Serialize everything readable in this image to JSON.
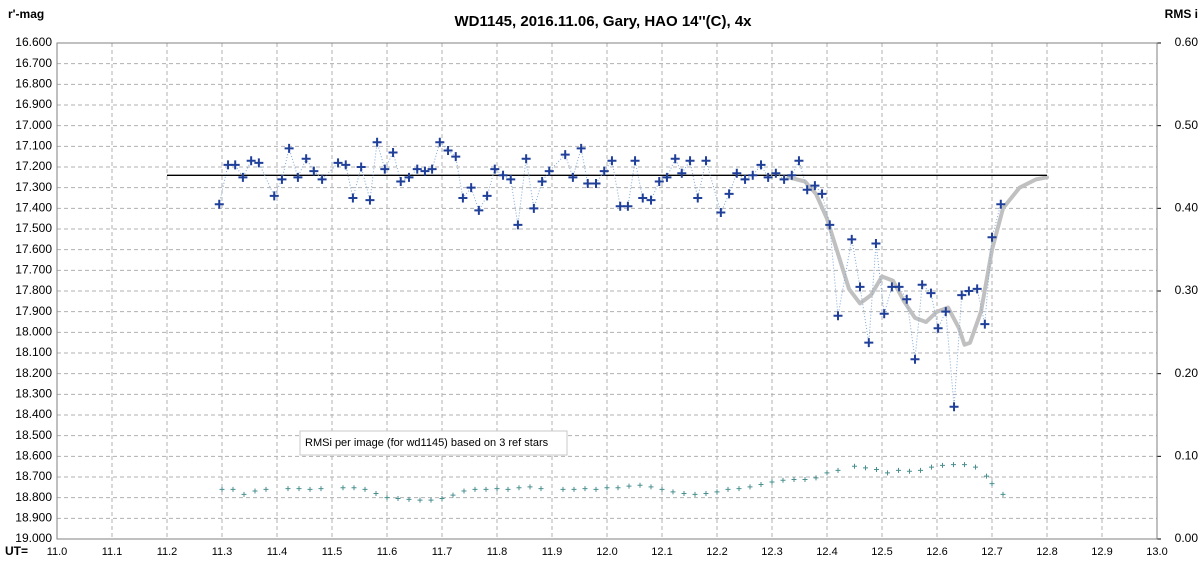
{
  "chart_data": {
    "type": "line",
    "title": "WD1145, 2016.11.06,  Gary, HAO 14''(C), 4x",
    "y_label": "r'-mag",
    "y2_label": "RMS i",
    "x_label": "UT=",
    "annotation": "RMSi per image (for wd1145) based on 3 ref stars",
    "xlim": [
      11.0,
      13.0
    ],
    "xticks": [
      {
        "value": 11.0,
        "label": "11.0"
      },
      {
        "value": 11.1,
        "label": "11.1"
      },
      {
        "value": 11.2,
        "label": "11.2"
      },
      {
        "value": 11.3,
        "label": "11.3"
      },
      {
        "value": 11.4,
        "label": "11.4"
      },
      {
        "value": 11.5,
        "label": "11.5"
      },
      {
        "value": 11.6,
        "label": "11.6"
      },
      {
        "value": 11.7,
        "label": "11.7"
      },
      {
        "value": 11.8,
        "label": "11.8"
      },
      {
        "value": 11.9,
        "label": "11.9"
      },
      {
        "value": 12.0,
        "label": "12.0"
      },
      {
        "value": 12.1,
        "label": "12.1"
      },
      {
        "value": 12.2,
        "label": "12.2"
      },
      {
        "value": 12.3,
        "label": "12.3"
      },
      {
        "value": 12.4,
        "label": "12.4"
      },
      {
        "value": 12.5,
        "label": "12.5"
      },
      {
        "value": 12.6,
        "label": "12.6"
      },
      {
        "value": 12.7,
        "label": "12.7"
      },
      {
        "value": 12.8,
        "label": "12.8"
      },
      {
        "value": 12.9,
        "label": "12.9"
      },
      {
        "value": 13.0,
        "label": "13.0"
      }
    ],
    "ylim": [
      19.0,
      16.6
    ],
    "yticks": [
      {
        "value": 16.6,
        "label": "16.600"
      },
      {
        "value": 16.7,
        "label": "16.700"
      },
      {
        "value": 16.8,
        "label": "16.800"
      },
      {
        "value": 16.9,
        "label": "16.900"
      },
      {
        "value": 17.0,
        "label": "17.000"
      },
      {
        "value": 17.1,
        "label": "17.100"
      },
      {
        "value": 17.2,
        "label": "17.200"
      },
      {
        "value": 17.3,
        "label": "17.300"
      },
      {
        "value": 17.4,
        "label": "17.400"
      },
      {
        "value": 17.5,
        "label": "17.500"
      },
      {
        "value": 17.6,
        "label": "17.600"
      },
      {
        "value": 17.7,
        "label": "17.700"
      },
      {
        "value": 17.8,
        "label": "17.800"
      },
      {
        "value": 17.9,
        "label": "17.900"
      },
      {
        "value": 18.0,
        "label": "18.000"
      },
      {
        "value": 18.1,
        "label": "18.100"
      },
      {
        "value": 18.2,
        "label": "18.200"
      },
      {
        "value": 18.3,
        "label": "18.300"
      },
      {
        "value": 18.4,
        "label": "18.400"
      },
      {
        "value": 18.5,
        "label": "18.500"
      },
      {
        "value": 18.6,
        "label": "18.600"
      },
      {
        "value": 18.7,
        "label": "18.700"
      },
      {
        "value": 18.8,
        "label": "18.800"
      },
      {
        "value": 18.9,
        "label": "18.900"
      },
      {
        "value": 19.0,
        "label": "19.000"
      }
    ],
    "y2lim": [
      0,
      0.6
    ],
    "y2ticks": [
      {
        "value": 0,
        "label": "0.00"
      },
      {
        "value": 0.1,
        "label": "0.10"
      },
      {
        "value": 0.2,
        "label": "0.20"
      },
      {
        "value": 0.3,
        "label": "0.30"
      },
      {
        "value": 0.4,
        "label": "0.40"
      },
      {
        "value": 0.5,
        "label": "0.50"
      },
      {
        "value": 0.6,
        "label": "0.60"
      }
    ],
    "grid": true,
    "series": [
      {
        "color": "#1f3f99",
        "marker": "cross",
        "line": "dotted",
        "line_color": "#7fa7d4",
        "x": [
          11.295,
          11.311,
          11.324,
          11.338,
          11.353,
          11.367,
          11.395,
          11.409,
          11.422,
          11.438,
          11.453,
          11.467,
          11.482,
          11.511,
          11.525,
          11.538,
          11.553,
          11.569,
          11.582,
          11.596,
          11.611,
          11.625,
          11.64,
          11.655,
          11.669,
          11.682,
          11.696,
          11.711,
          11.725,
          11.738,
          11.753,
          11.767,
          11.782,
          11.796,
          11.811,
          11.825,
          11.838,
          11.853,
          11.867,
          11.882,
          11.895,
          11.924,
          11.938,
          11.953,
          11.965,
          11.98,
          11.995,
          12.009,
          12.024,
          12.038,
          12.051,
          12.065,
          12.08,
          12.095,
          12.109,
          12.124,
          12.136,
          12.151,
          12.165,
          12.18,
          12.207,
          12.222,
          12.236,
          12.251,
          12.265,
          12.28,
          12.293,
          12.307,
          12.322,
          12.336,
          12.349,
          12.364,
          12.378,
          12.391,
          12.405,
          12.42,
          12.445,
          12.46,
          12.476,
          12.489,
          12.504,
          12.518,
          12.531,
          12.545,
          12.56,
          12.573,
          12.589,
          12.602,
          12.616,
          12.631,
          12.645,
          12.658,
          12.673,
          12.687,
          12.7,
          12.716
        ],
        "values": [
          17.38,
          17.19,
          17.19,
          17.25,
          17.17,
          17.18,
          17.34,
          17.26,
          17.11,
          17.25,
          17.16,
          17.22,
          17.26,
          17.18,
          17.19,
          17.35,
          17.2,
          17.36,
          17.08,
          17.21,
          17.13,
          17.27,
          17.25,
          17.21,
          17.22,
          17.21,
          17.08,
          17.12,
          17.15,
          17.35,
          17.3,
          17.41,
          17.34,
          17.21,
          17.24,
          17.26,
          17.48,
          17.16,
          17.4,
          17.27,
          17.22,
          17.14,
          17.25,
          17.11,
          17.28,
          17.28,
          17.22,
          17.17,
          17.39,
          17.39,
          17.17,
          17.35,
          17.36,
          17.27,
          17.25,
          17.16,
          17.23,
          17.17,
          17.35,
          17.17,
          17.42,
          17.33,
          17.23,
          17.26,
          17.24,
          17.19,
          17.25,
          17.23,
          17.26,
          17.24,
          17.17,
          17.31,
          17.29,
          17.33,
          17.48,
          17.92,
          17.55,
          17.78,
          18.05,
          17.57,
          17.91,
          17.78,
          17.78,
          17.84,
          18.13,
          17.77,
          17.81,
          17.98,
          17.9,
          18.36,
          17.82,
          17.8,
          17.79,
          17.96,
          17.54,
          17.38
        ]
      },
      {
        "color": "#4a8f8f",
        "marker": "small-cross",
        "axis": "y2",
        "x": [
          11.3,
          11.32,
          11.34,
          11.36,
          11.38,
          11.42,
          11.44,
          11.46,
          11.48,
          11.52,
          11.54,
          11.56,
          11.58,
          11.6,
          11.62,
          11.64,
          11.66,
          11.68,
          11.7,
          11.72,
          11.74,
          11.76,
          11.78,
          11.8,
          11.82,
          11.84,
          11.86,
          11.88,
          11.92,
          11.94,
          11.96,
          11.98,
          12.0,
          12.02,
          12.04,
          12.06,
          12.08,
          12.1,
          12.12,
          12.14,
          12.16,
          12.18,
          12.2,
          12.22,
          12.24,
          12.26,
          12.28,
          12.3,
          12.32,
          12.34,
          12.36,
          12.38,
          12.4,
          12.42,
          12.45,
          12.47,
          12.49,
          12.51,
          12.53,
          12.55,
          12.57,
          12.59,
          12.61,
          12.63,
          12.65,
          12.67,
          12.69,
          12.7,
          12.72
        ],
        "values": [
          0.06,
          0.06,
          0.054,
          0.058,
          0.06,
          0.061,
          0.061,
          0.06,
          0.061,
          0.062,
          0.062,
          0.06,
          0.055,
          0.05,
          0.049,
          0.048,
          0.047,
          0.047,
          0.049,
          0.053,
          0.058,
          0.06,
          0.06,
          0.061,
          0.06,
          0.062,
          0.063,
          0.061,
          0.06,
          0.06,
          0.061,
          0.06,
          0.062,
          0.062,
          0.064,
          0.065,
          0.063,
          0.06,
          0.057,
          0.055,
          0.054,
          0.055,
          0.057,
          0.06,
          0.061,
          0.063,
          0.066,
          0.069,
          0.071,
          0.072,
          0.072,
          0.074,
          0.08,
          0.083,
          0.088,
          0.086,
          0.084,
          0.08,
          0.083,
          0.082,
          0.083,
          0.087,
          0.089,
          0.09,
          0.09,
          0.087,
          0.076,
          0.067,
          0.054
        ]
      },
      {
        "color": "#000000",
        "line": "solid",
        "x": [
          11.2,
          12.8
        ],
        "values": [
          17.24,
          17.24
        ]
      },
      {
        "color": "#c0c0c0",
        "line": "thick",
        "x": [
          12.33,
          12.36,
          12.38,
          12.4,
          12.42,
          12.44,
          12.46,
          12.48,
          12.5,
          12.52,
          12.54,
          12.56,
          12.58,
          12.6,
          12.62,
          12.64,
          12.65,
          12.66,
          12.68,
          12.7,
          12.72,
          12.75,
          12.78,
          12.8
        ],
        "values": [
          17.25,
          17.27,
          17.33,
          17.45,
          17.62,
          17.79,
          17.86,
          17.82,
          17.73,
          17.75,
          17.85,
          17.93,
          17.95,
          17.9,
          17.88,
          17.98,
          18.06,
          18.05,
          17.9,
          17.6,
          17.4,
          17.3,
          17.26,
          17.25
        ]
      }
    ]
  }
}
